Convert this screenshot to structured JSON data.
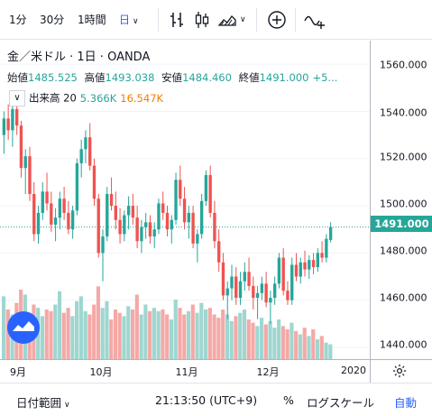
{
  "toolbar": {
    "intervals": [
      "1分",
      "30分",
      "1時間",
      "日"
    ],
    "active_interval": "日",
    "icons": [
      "bar-style-icon",
      "candle-style-icon",
      "area-style-icon",
      "add-compare-icon",
      "indicators-icon"
    ]
  },
  "legend": {
    "symbol": "金／米ドル · 1日 · OANDA",
    "ohlc": [
      {
        "label": "始値",
        "value": "1485.525"
      },
      {
        "label": "高値",
        "value": "1493.038"
      },
      {
        "label": "安値",
        "value": "1484.460"
      },
      {
        "label": "終値",
        "value": "1491.000"
      }
    ],
    "change_tail": "+5..."
  },
  "volume_legend": {
    "label": "出来高 20",
    "value1": "5.366K",
    "value2": "16.547K"
  },
  "price_axis": {
    "ticks": [
      "1560.000",
      "1540.000",
      "1520.000",
      "1500.000",
      "1480.000",
      "1460.000",
      "1440.000"
    ],
    "current": "1491.000"
  },
  "time_axis": {
    "ticks": [
      "9月",
      "10月",
      "11月",
      "12月",
      "2020"
    ]
  },
  "footer": {
    "range_label": "日付範囲",
    "time": "21:13:50 (UTC+9)",
    "percent": "%",
    "log": "ログスケール",
    "auto": "自動"
  },
  "colors": {
    "up": "#26a69a",
    "down": "#ef5350",
    "vol_up": "#9fd6d0",
    "vol_down": "#f4a9a7",
    "accent": "#2962ff"
  },
  "chart_data": {
    "type": "candlestick",
    "title": "金／米ドル · 1日 · OANDA",
    "ylim": [
      1435,
      1570
    ],
    "x_ticks": [
      "9月",
      "10月",
      "11月",
      "12月",
      "2020"
    ],
    "candles": [
      [
        1530,
        1540,
        1522,
        1537
      ],
      [
        1537,
        1543,
        1528,
        1532
      ],
      [
        1532,
        1546,
        1525,
        1541
      ],
      [
        1541,
        1549,
        1530,
        1534
      ],
      [
        1534,
        1536,
        1512,
        1516
      ],
      [
        1516,
        1524,
        1505,
        1521
      ],
      [
        1521,
        1525,
        1502,
        1505
      ],
      [
        1505,
        1510,
        1485,
        1488
      ],
      [
        1488,
        1500,
        1484,
        1497
      ],
      [
        1497,
        1510,
        1494,
        1506
      ],
      [
        1506,
        1514,
        1498,
        1501
      ],
      [
        1501,
        1506,
        1489,
        1492
      ],
      [
        1492,
        1499,
        1485,
        1495
      ],
      [
        1495,
        1506,
        1490,
        1503
      ],
      [
        1503,
        1508,
        1494,
        1497
      ],
      [
        1497,
        1502,
        1488,
        1490
      ],
      [
        1490,
        1500,
        1486,
        1498
      ],
      [
        1498,
        1520,
        1496,
        1518
      ],
      [
        1518,
        1528,
        1512,
        1524
      ],
      [
        1524,
        1532,
        1518,
        1529
      ],
      [
        1529,
        1535,
        1515,
        1517
      ],
      [
        1517,
        1520,
        1500,
        1503
      ],
      [
        1503,
        1505,
        1478,
        1480
      ],
      [
        1480,
        1490,
        1468,
        1487
      ],
      [
        1487,
        1508,
        1485,
        1505
      ],
      [
        1505,
        1512,
        1498,
        1500
      ],
      [
        1500,
        1506,
        1490,
        1494
      ],
      [
        1494,
        1499,
        1484,
        1488
      ],
      [
        1488,
        1498,
        1485,
        1496
      ],
      [
        1496,
        1504,
        1490,
        1500
      ],
      [
        1500,
        1505,
        1492,
        1495
      ],
      [
        1495,
        1500,
        1482,
        1485
      ],
      [
        1485,
        1494,
        1480,
        1491
      ],
      [
        1491,
        1497,
        1486,
        1493
      ],
      [
        1493,
        1496,
        1484,
        1487
      ],
      [
        1487,
        1493,
        1482,
        1490
      ],
      [
        1490,
        1503,
        1488,
        1501
      ],
      [
        1501,
        1506,
        1494,
        1497
      ],
      [
        1497,
        1500,
        1487,
        1490
      ],
      [
        1490,
        1496,
        1484,
        1494
      ],
      [
        1494,
        1514,
        1492,
        1511
      ],
      [
        1511,
        1517,
        1500,
        1503
      ],
      [
        1503,
        1508,
        1490,
        1493
      ],
      [
        1493,
        1500,
        1486,
        1497
      ],
      [
        1497,
        1500,
        1482,
        1484
      ],
      [
        1484,
        1490,
        1476,
        1488
      ],
      [
        1488,
        1505,
        1486,
        1502
      ],
      [
        1502,
        1515,
        1500,
        1513
      ],
      [
        1513,
        1517,
        1495,
        1497
      ],
      [
        1497,
        1502,
        1482,
        1485
      ],
      [
        1485,
        1490,
        1472,
        1476
      ],
      [
        1476,
        1480,
        1460,
        1462
      ],
      [
        1462,
        1468,
        1452,
        1465
      ],
      [
        1465,
        1475,
        1460,
        1470
      ],
      [
        1470,
        1474,
        1458,
        1461
      ],
      [
        1461,
        1472,
        1458,
        1468
      ],
      [
        1468,
        1476,
        1464,
        1472
      ],
      [
        1472,
        1478,
        1464,
        1466
      ],
      [
        1466,
        1470,
        1456,
        1461
      ],
      [
        1461,
        1466,
        1452,
        1463
      ],
      [
        1463,
        1470,
        1460,
        1467
      ],
      [
        1467,
        1472,
        1457,
        1459
      ],
      [
        1459,
        1464,
        1450,
        1461
      ],
      [
        1461,
        1470,
        1458,
        1467
      ],
      [
        1467,
        1480,
        1465,
        1478
      ],
      [
        1478,
        1482,
        1462,
        1464
      ],
      [
        1464,
        1468,
        1458,
        1460
      ],
      [
        1460,
        1478,
        1458,
        1475
      ],
      [
        1475,
        1480,
        1468,
        1470
      ],
      [
        1470,
        1478,
        1467,
        1476
      ],
      [
        1476,
        1481,
        1470,
        1473
      ],
      [
        1473,
        1479,
        1469,
        1477
      ],
      [
        1477,
        1480,
        1471,
        1474
      ],
      [
        1474,
        1482,
        1472,
        1480
      ],
      [
        1480,
        1485,
        1476,
        1478
      ],
      [
        1478,
        1488,
        1476,
        1486
      ],
      [
        1485.525,
        1493.038,
        1484.46,
        1491
      ]
    ],
    "volume": [
      38,
      30,
      27,
      34,
      42,
      39,
      28,
      33,
      31,
      26,
      30,
      29,
      33,
      41,
      28,
      31,
      26,
      35,
      38,
      29,
      27,
      33,
      44,
      31,
      35,
      24,
      30,
      28,
      26,
      32,
      30,
      39,
      27,
      33,
      29,
      31,
      29,
      30,
      27,
      24,
      36,
      31,
      27,
      29,
      33,
      28,
      34,
      30,
      31,
      27,
      25,
      30,
      27,
      23,
      26,
      28,
      30,
      24,
      22,
      20,
      25,
      21,
      23,
      19,
      24,
      20,
      18,
      22,
      17,
      15,
      19,
      14,
      18,
      12,
      14,
      10,
      9
    ]
  }
}
